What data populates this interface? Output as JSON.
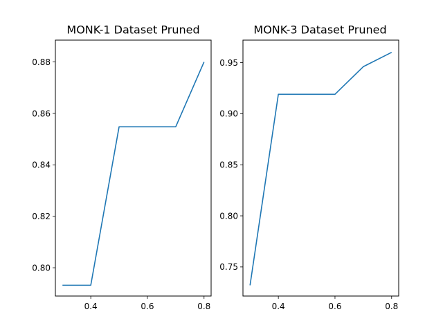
{
  "chart_data": [
    {
      "type": "line",
      "title": "MONK-1 Dataset Pruned",
      "xlabel": "",
      "ylabel": "",
      "xlim": [
        0.275,
        0.825
      ],
      "ylim": [
        0.789,
        0.8885
      ],
      "x_ticks": [
        0.4,
        0.6,
        0.8
      ],
      "x_tick_labels": [
        "0.4",
        "0.6",
        "0.8"
      ],
      "y_ticks": [
        0.8,
        0.82,
        0.84,
        0.86,
        0.88
      ],
      "y_tick_labels": [
        "0.80",
        "0.82",
        "0.84",
        "0.86",
        "0.88"
      ],
      "grid": false,
      "series": [
        {
          "color": "#1f77b4",
          "x": [
            0.3,
            0.4,
            0.5,
            0.6,
            0.7,
            0.8
          ],
          "y": [
            0.7932,
            0.7932,
            0.8548,
            0.8548,
            0.8548,
            0.88
          ]
        }
      ]
    },
    {
      "type": "line",
      "title": "MONK-3 Dataset Pruned",
      "xlabel": "",
      "ylabel": "",
      "xlim": [
        0.275,
        0.825
      ],
      "ylim": [
        0.7215,
        0.972
      ],
      "x_ticks": [
        0.4,
        0.6,
        0.8
      ],
      "x_tick_labels": [
        "0.4",
        "0.6",
        "0.8"
      ],
      "y_ticks": [
        0.75,
        0.8,
        0.85,
        0.9,
        0.95
      ],
      "y_tick_labels": [
        "0.75",
        "0.80",
        "0.85",
        "0.90",
        "0.95"
      ],
      "grid": false,
      "series": [
        {
          "color": "#1f77b4",
          "x": [
            0.3,
            0.4,
            0.5,
            0.6,
            0.7,
            0.8
          ],
          "y": [
            0.732,
            0.919,
            0.919,
            0.919,
            0.946,
            0.96
          ]
        }
      ]
    }
  ]
}
